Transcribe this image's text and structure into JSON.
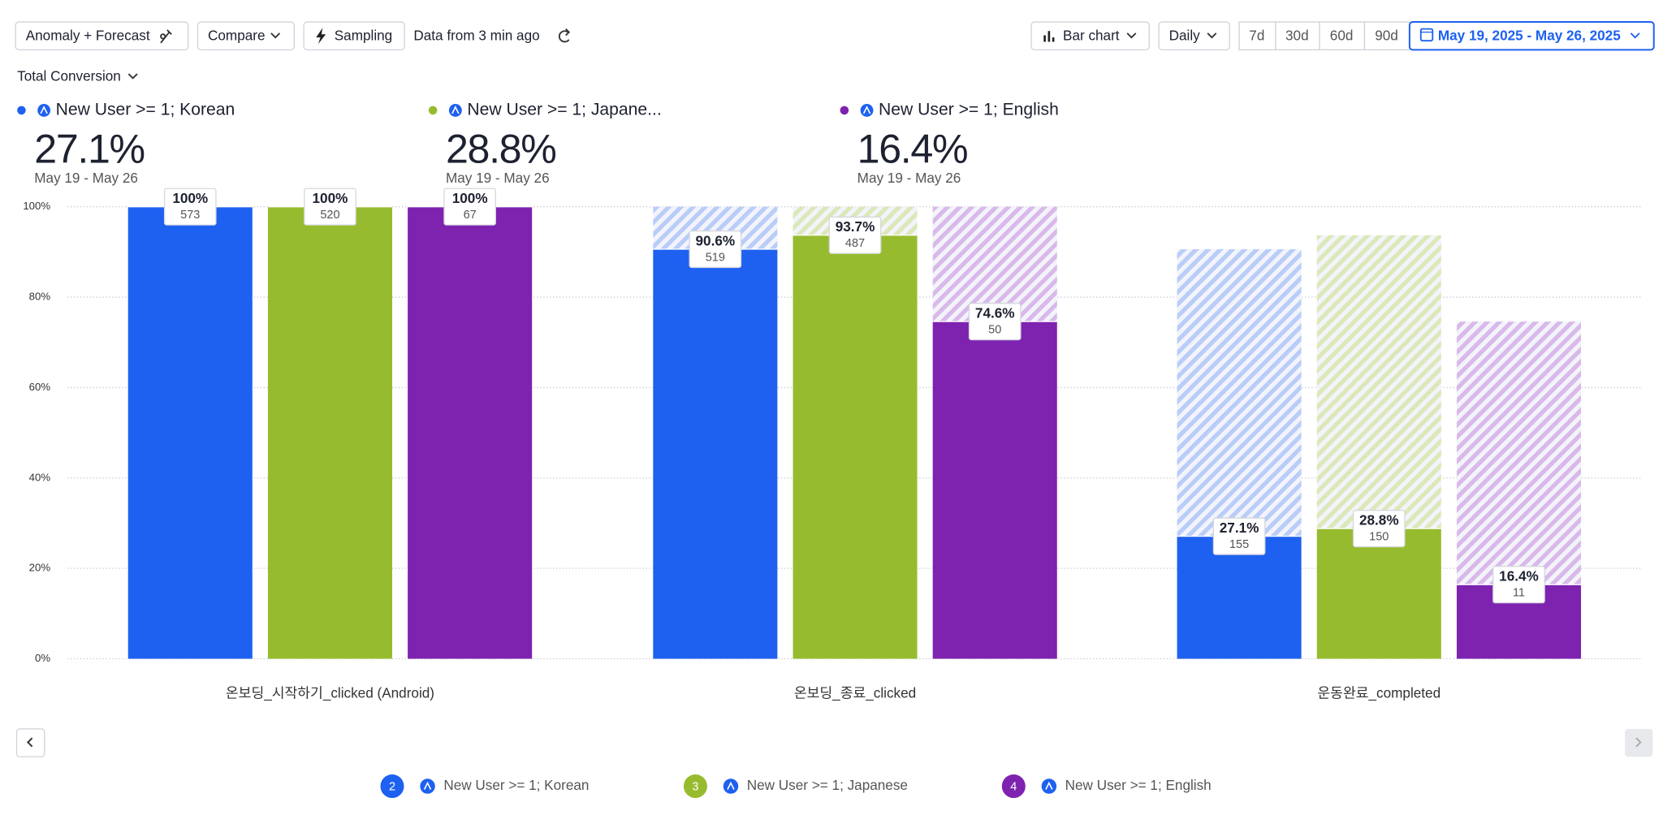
{
  "toolbar": {
    "anomaly": "Anomaly + Forecast",
    "compare": "Compare",
    "sampling": "Sampling",
    "freshness": "Data from 3 min ago",
    "chart_type": "Bar chart",
    "interval": "Daily",
    "ranges": [
      "7d",
      "30d",
      "60d",
      "90d"
    ],
    "date_range": "May 19, 2025 - May 26, 2025"
  },
  "metric": "Total Conversion",
  "summary": [
    {
      "label": "New User >= 1; Korean",
      "value": "27.1%",
      "period": "May 19 - May 26"
    },
    {
      "label": "New User >= 1; Japane...",
      "value": "28.8%",
      "period": "May 19 - May 26"
    },
    {
      "label": "New User >= 1; English",
      "value": "16.4%",
      "period": "May 19 - May 26"
    }
  ],
  "chart_data": {
    "type": "bar",
    "categories": [
      "온보딩_시작하기_clicked (Android)",
      "온보딩_종료_clicked",
      "운동완료_completed"
    ],
    "series": [
      {
        "name": "New User >= 1; Korean",
        "badge": 2,
        "color": "#1e61f0",
        "hatch": "#b9cdf8",
        "values": [
          100,
          90.6,
          27.1
        ],
        "value_labels": [
          "100%",
          "90.6%",
          "27.1%"
        ],
        "counts": [
          573,
          519,
          155
        ]
      },
      {
        "name": "New User >= 1; Japanese",
        "badge": 3,
        "color": "#97bb2f",
        "hatch": "#dbe8b8",
        "values": [
          100,
          93.7,
          28.8
        ],
        "value_labels": [
          "100%",
          "93.7%",
          "28.8%"
        ],
        "counts": [
          520,
          487,
          150
        ]
      },
      {
        "name": "New User >= 1; English",
        "badge": 4,
        "color": "#7e22b0",
        "hatch": "#d9b9ea",
        "values": [
          100,
          74.6,
          16.4
        ],
        "value_labels": [
          "100%",
          "74.6%",
          "16.4%"
        ],
        "counts": [
          67,
          50,
          11
        ]
      }
    ],
    "ylim": [
      0,
      100
    ],
    "yticks": [
      {
        "value": 0,
        "label": "0%"
      },
      {
        "value": 20,
        "label": "20%"
      },
      {
        "value": 40,
        "label": "40%"
      },
      {
        "value": 60,
        "label": "60%"
      },
      {
        "value": 80,
        "label": "80%"
      },
      {
        "value": 100,
        "label": "100%"
      }
    ],
    "grid": true
  }
}
